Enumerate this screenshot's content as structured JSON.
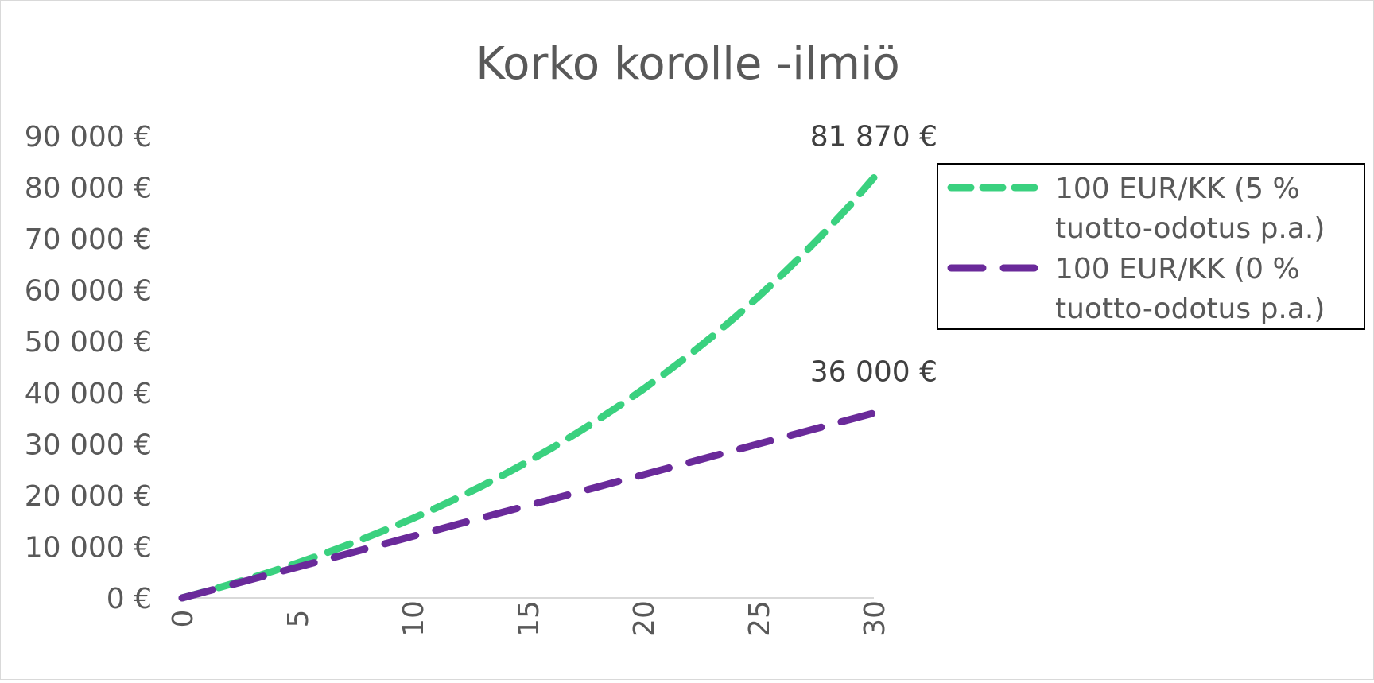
{
  "chart_data": {
    "type": "line",
    "title": "Korko korolle -ilmiö",
    "xlabel": "",
    "ylabel": "",
    "xlim": [
      0,
      30
    ],
    "ylim": [
      0,
      90000
    ],
    "x_ticks": [
      "0",
      "5",
      "10",
      "15",
      "20",
      "25",
      "30"
    ],
    "y_ticks": [
      "0 €",
      "10 000 €",
      "20 000 €",
      "30 000 €",
      "40 000 €",
      "50 000 €",
      "60 000 €",
      "70 000 €",
      "80 000 €",
      "90 000 €"
    ],
    "grid": false,
    "legend_position": "right",
    "x": [
      0,
      1,
      2,
      3,
      4,
      5,
      6,
      7,
      8,
      9,
      10,
      11,
      12,
      13,
      14,
      15,
      16,
      17,
      18,
      19,
      20,
      21,
      22,
      23,
      24,
      25,
      26,
      27,
      28,
      29,
      30
    ],
    "series": [
      {
        "name": "100 EUR/KK (5 % tuotto-odotus p.a.)",
        "name_lines": [
          "100 EUR/KK (5 %",
          "tuotto-odotus p.a.)"
        ],
        "color": "#3ad17f",
        "dash": "short",
        "values": [
          0,
          1230,
          2520,
          3880,
          5300,
          6800,
          8370,
          10020,
          11750,
          13570,
          15480,
          17490,
          19590,
          21800,
          24120,
          26560,
          29110,
          31790,
          34610,
          37570,
          40670,
          43940,
          47370,
          50970,
          54750,
          58720,
          62890,
          67260,
          71860,
          76680,
          81870
        ],
        "end_label": "81 870 €"
      },
      {
        "name": "100 EUR/KK (0 % tuotto-odotus p.a.)",
        "name_lines": [
          "100 EUR/KK (0 %",
          "tuotto-odotus p.a.)"
        ],
        "color": "#6a2a9a",
        "dash": "long",
        "values": [
          0,
          1200,
          2400,
          3600,
          4800,
          6000,
          7200,
          8400,
          9600,
          10800,
          12000,
          13200,
          14400,
          15600,
          16800,
          18000,
          19200,
          20400,
          21600,
          22800,
          24000,
          25200,
          26400,
          27600,
          28800,
          30000,
          31200,
          32400,
          33600,
          34800,
          36000
        ],
        "end_label": "36 000 €"
      }
    ]
  }
}
